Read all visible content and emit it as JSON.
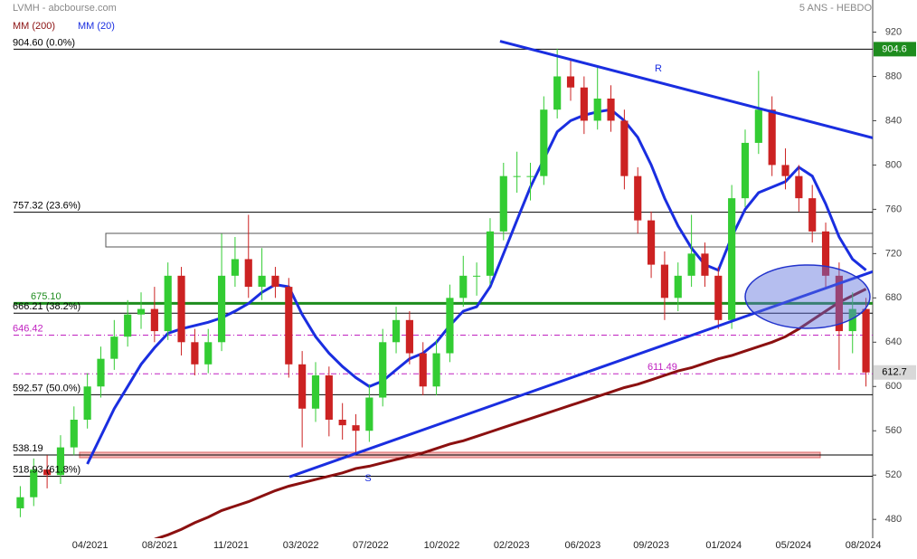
{
  "chart_data": {
    "type": "candlestick",
    "source": "LVMH - abcbourse.com",
    "period": "5 ANS - HEBDO",
    "up_color": "#33cc33",
    "down_color": "#cc2222",
    "xlim": [
      0,
      64
    ],
    "ylim": [
      463,
      949
    ],
    "xticks": [
      {
        "value": 5.7,
        "label": "04/2021"
      },
      {
        "value": 10.9,
        "label": "08/2021"
      },
      {
        "value": 16.2,
        "label": "11/2021"
      },
      {
        "value": 21.4,
        "label": "03/2022"
      },
      {
        "value": 26.6,
        "label": "07/2022"
      },
      {
        "value": 31.9,
        "label": "10/2022"
      },
      {
        "value": 37.1,
        "label": "02/2023"
      },
      {
        "value": 42.4,
        "label": "06/2023"
      },
      {
        "value": 47.5,
        "label": "09/2023"
      },
      {
        "value": 52.9,
        "label": "01/2024"
      },
      {
        "value": 58.1,
        "label": "05/2024"
      },
      {
        "value": 63.3,
        "label": "08/2024"
      }
    ],
    "yticks": [
      920,
      880,
      840,
      800,
      760,
      720,
      680,
      640,
      600,
      560,
      520,
      480
    ],
    "ohlc": [
      [
        490,
        510,
        482,
        500
      ],
      [
        500,
        535,
        492,
        525
      ],
      [
        525,
        538,
        508,
        520
      ],
      [
        520,
        556,
        512,
        545
      ],
      [
        545,
        582,
        538,
        570
      ],
      [
        570,
        612,
        562,
        600
      ],
      [
        600,
        636,
        590,
        625
      ],
      [
        625,
        660,
        615,
        645
      ],
      [
        645,
        678,
        636,
        665
      ],
      [
        665,
        685,
        652,
        670
      ],
      [
        670,
        690,
        640,
        650
      ],
      [
        650,
        712,
        642,
        700
      ],
      [
        700,
        708,
        628,
        640
      ],
      [
        640,
        652,
        610,
        620
      ],
      [
        620,
        652,
        612,
        640
      ],
      [
        640,
        738,
        632,
        700
      ],
      [
        700,
        735,
        690,
        715
      ],
      [
        715,
        755,
        680,
        690
      ],
      [
        690,
        725,
        678,
        700
      ],
      [
        700,
        708,
        680,
        690
      ],
      [
        690,
        698,
        608,
        620
      ],
      [
        620,
        632,
        545,
        580
      ],
      [
        580,
        622,
        568,
        610
      ],
      [
        610,
        618,
        555,
        570
      ],
      [
        570,
        585,
        552,
        565
      ],
      [
        565,
        575,
        540,
        560
      ],
      [
        560,
        602,
        550,
        590
      ],
      [
        590,
        652,
        582,
        640
      ],
      [
        640,
        672,
        630,
        660
      ],
      [
        660,
        668,
        620,
        630
      ],
      [
        630,
        640,
        592,
        600
      ],
      [
        600,
        642,
        592,
        630
      ],
      [
        630,
        692,
        622,
        680
      ],
      [
        680,
        718,
        672,
        700
      ],
      [
        700,
        712,
        682,
        700
      ],
      [
        700,
        752,
        692,
        740
      ],
      [
        740,
        802,
        732,
        790
      ],
      [
        790,
        812,
        775,
        790
      ],
      [
        790,
        802,
        768,
        790
      ],
      [
        790,
        862,
        782,
        850
      ],
      [
        850,
        905,
        842,
        880
      ],
      [
        880,
        895,
        858,
        870
      ],
      [
        870,
        880,
        828,
        840
      ],
      [
        840,
        890,
        832,
        860
      ],
      [
        860,
        872,
        830,
        840
      ],
      [
        840,
        850,
        778,
        790
      ],
      [
        790,
        798,
        738,
        750
      ],
      [
        750,
        758,
        698,
        710
      ],
      [
        710,
        722,
        660,
        680
      ],
      [
        680,
        712,
        668,
        700
      ],
      [
        700,
        755,
        690,
        720
      ],
      [
        720,
        730,
        690,
        700
      ],
      [
        700,
        708,
        652,
        660
      ],
      [
        660,
        782,
        652,
        770
      ],
      [
        770,
        832,
        762,
        820
      ],
      [
        820,
        885,
        810,
        850
      ],
      [
        850,
        862,
        790,
        800
      ],
      [
        800,
        815,
        778,
        790
      ],
      [
        790,
        800,
        758,
        770
      ],
      [
        770,
        782,
        730,
        740
      ],
      [
        740,
        748,
        690,
        700
      ],
      [
        700,
        712,
        615,
        650
      ],
      [
        650,
        685,
        630,
        670
      ],
      [
        670,
        680,
        600,
        612.7
      ]
    ],
    "series": [
      {
        "name": "MM (200)",
        "color": "#8b1010",
        "values": [
          null,
          null,
          null,
          null,
          null,
          null,
          null,
          null,
          null,
          null,
          462,
          466,
          471,
          477,
          482,
          488,
          492,
          496,
          501,
          506,
          510,
          513,
          516,
          519,
          522,
          526,
          528,
          531,
          534,
          537,
          540,
          544,
          548,
          551,
          555,
          559,
          563,
          567,
          571,
          575,
          579,
          583,
          587,
          591,
          595,
          599,
          602,
          606,
          610,
          614,
          617,
          621,
          625,
          628,
          632,
          636,
          640,
          645,
          652,
          660,
          668,
          676,
          682,
          688
        ]
      },
      {
        "name": "MM (20)",
        "color": "#1a2ee0",
        "values": [
          null,
          null,
          null,
          null,
          null,
          530,
          555,
          580,
          600,
          620,
          635,
          648,
          652,
          655,
          658,
          662,
          668,
          675,
          685,
          692,
          690,
          665,
          645,
          630,
          618,
          608,
          600,
          605,
          615,
          625,
          630,
          640,
          655,
          668,
          672,
          690,
          720,
          750,
          780,
          805,
          830,
          840,
          845,
          848,
          850,
          840,
          825,
          800,
          770,
          745,
          725,
          710,
          705,
          735,
          760,
          775,
          780,
          785,
          798,
          790,
          765,
          735,
          715,
          705
        ]
      }
    ],
    "levels": [
      {
        "value": 904.6,
        "label": "904.60  (0.0%)",
        "color": "#000000"
      },
      {
        "value": 757.32,
        "label": "757.32  (23.6%)",
        "color": "#000000"
      },
      {
        "value": 675.1,
        "label": "675.10",
        "color": "#1e8c1e"
      },
      {
        "value": 666.21,
        "label": "666.21  (38.2%)",
        "color": "#000000"
      },
      {
        "value": 646.42,
        "label": "646.42",
        "color": "#c020c0"
      },
      {
        "value": 611.49,
        "label": "611.49",
        "color": "#c020c0"
      },
      {
        "value": 592.57,
        "label": "592.57  (50.0%)",
        "color": "#000000"
      },
      {
        "value": 538.19,
        "label": "538.19",
        "color": "#000000"
      },
      {
        "value": 518.93,
        "label": "518.93  (61.8%)",
        "color": "#000000"
      }
    ],
    "trendlines": [
      {
        "label": "R",
        "x": [
          36.24,
          64
        ],
        "y": [
          911.8,
          824.5
        ],
        "color": "#1a2ee0"
      },
      {
        "label": "S",
        "x": [
          20.55,
          64
        ],
        "y": [
          518.4,
          703.7
        ],
        "color": "#1a2ee0"
      }
    ],
    "price_tags": [
      {
        "value": 904.6,
        "label": "904.6",
        "color": "#1e8c1e"
      },
      {
        "value": 612.7,
        "label": "612.7",
        "color": "#d8d8d8"
      }
    ]
  }
}
